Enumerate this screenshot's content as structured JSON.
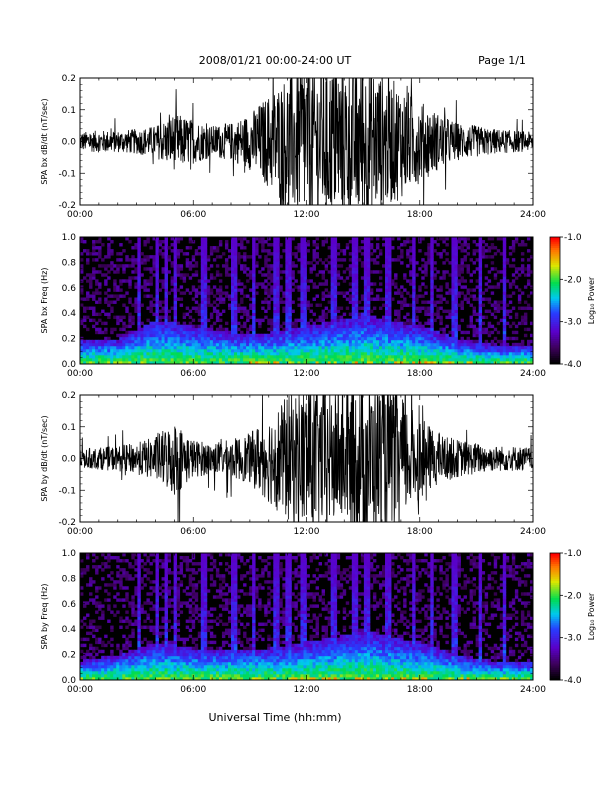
{
  "header": {
    "title": "2008/01/21   00:00-24:00 UT",
    "page": "Page 1/1"
  },
  "xlabel": "Universal Time (hh:mm)",
  "chart_data": [
    {
      "type": "line",
      "ylabel": "SPA bx dB/dt (nT/sec)",
      "xlim": [
        0,
        24
      ],
      "ylim": [
        -0.2,
        0.2
      ],
      "x_tick_labels": [
        "00:00",
        "06:00",
        "12:00",
        "18:00",
        "24:00"
      ],
      "y_tick_labels": [
        "0.2",
        "0.1",
        "0.0",
        "-0.1",
        "-0.2"
      ],
      "y_ticks": [
        0.2,
        0.1,
        0.0,
        -0.1,
        -0.2
      ],
      "color": "#000000",
      "envelope": {
        "description_hours": [
          0,
          1,
          2,
          3,
          4,
          5,
          6,
          7,
          8,
          9,
          10,
          11,
          12,
          13,
          14,
          15,
          16,
          17,
          18,
          19,
          20,
          21,
          22,
          23,
          24
        ],
        "amplitude": [
          0.03,
          0.035,
          0.035,
          0.04,
          0.05,
          0.09,
          0.07,
          0.05,
          0.06,
          0.09,
          0.15,
          0.22,
          0.26,
          0.25,
          0.24,
          0.26,
          0.22,
          0.18,
          0.13,
          0.09,
          0.06,
          0.05,
          0.04,
          0.035,
          0.03
        ]
      }
    },
    {
      "type": "heatmap",
      "ylabel": "SPA bx Freq (Hz)",
      "xlim": [
        0,
        24
      ],
      "ylim": [
        0,
        1.0
      ],
      "x_tick_labels": [
        "00:00",
        "06:00",
        "12:00",
        "18:00",
        "24:00"
      ],
      "y_tick_labels": [
        "1.0",
        "0.8",
        "0.6",
        "0.4",
        "0.2",
        "0.0"
      ],
      "y_ticks": [
        1.0,
        0.8,
        0.6,
        0.4,
        0.2,
        0.0
      ],
      "colorbar": {
        "label": "Log₁₀ Power",
        "range": [
          -4.0,
          -1.0
        ],
        "tick_labels": [
          "-1.0",
          "-2.0",
          "-3.0",
          "-4.0"
        ],
        "ticks": [
          -1.0,
          -2.0,
          -3.0,
          -4.0
        ]
      },
      "band_frequency_hz": {
        "hours": [
          0,
          2,
          4,
          6,
          8,
          10,
          12,
          14,
          15,
          16,
          18,
          20,
          22,
          24
        ],
        "upper": [
          0.2,
          0.2,
          0.35,
          0.3,
          0.25,
          0.25,
          0.3,
          0.35,
          0.4,
          0.35,
          0.3,
          0.2,
          0.15,
          0.15
        ]
      }
    },
    {
      "type": "line",
      "ylabel": "SPA by dB/dt (nT/sec)",
      "xlim": [
        0,
        24
      ],
      "ylim": [
        -0.2,
        0.2
      ],
      "x_tick_labels": [
        "00:00",
        "06:00",
        "12:00",
        "18:00",
        "24:00"
      ],
      "y_tick_labels": [
        "0.2",
        "0.1",
        "0.0",
        "-0.1",
        "-0.2"
      ],
      "y_ticks": [
        0.2,
        0.1,
        0.0,
        -0.1,
        -0.2
      ],
      "color": "#000000",
      "envelope": {
        "description_hours": [
          0,
          1,
          2,
          3,
          4,
          5,
          6,
          7,
          8,
          9,
          10,
          11,
          12,
          13,
          14,
          15,
          16,
          17,
          18,
          19,
          20,
          21,
          22,
          23,
          24
        ],
        "amplitude": [
          0.03,
          0.035,
          0.04,
          0.05,
          0.07,
          0.12,
          0.06,
          0.05,
          0.06,
          0.08,
          0.14,
          0.2,
          0.24,
          0.22,
          0.2,
          0.26,
          0.24,
          0.2,
          0.13,
          0.08,
          0.06,
          0.05,
          0.04,
          0.04,
          0.035
        ]
      }
    },
    {
      "type": "heatmap",
      "ylabel": "SPA by Freq (Hz)",
      "xlim": [
        0,
        24
      ],
      "ylim": [
        0,
        1.0
      ],
      "x_tick_labels": [
        "00:00",
        "06:00",
        "12:00",
        "18:00",
        "24:00"
      ],
      "y_tick_labels": [
        "1.0",
        "0.8",
        "0.6",
        "0.4",
        "0.2",
        "0.0"
      ],
      "y_ticks": [
        1.0,
        0.8,
        0.6,
        0.4,
        0.2,
        0.0
      ],
      "colorbar": {
        "label": "Log₁₀ Power",
        "range": [
          -4.0,
          -1.0
        ],
        "tick_labels": [
          "-1.0",
          "-2.0",
          "-3.0",
          "-4.0"
        ],
        "ticks": [
          -1.0,
          -2.0,
          -3.0,
          -4.0
        ]
      },
      "band_frequency_hz": {
        "hours": [
          0,
          2,
          4,
          6,
          8,
          10,
          12,
          14,
          15,
          16,
          18,
          20,
          22,
          24
        ],
        "upper": [
          0.15,
          0.2,
          0.3,
          0.25,
          0.25,
          0.25,
          0.3,
          0.35,
          0.4,
          0.35,
          0.3,
          0.2,
          0.15,
          0.15
        ]
      }
    }
  ]
}
